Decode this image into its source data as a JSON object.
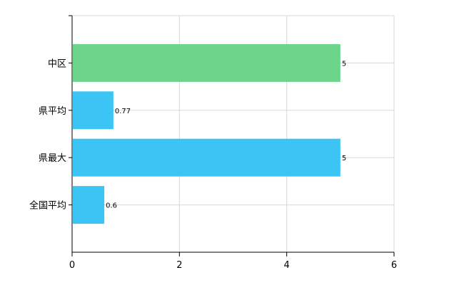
{
  "chart_data": {
    "type": "bar",
    "orientation": "horizontal",
    "categories": [
      "中区",
      "県平均",
      "県最大",
      "全国平均"
    ],
    "values": [
      5,
      0.77,
      5,
      0.6
    ],
    "value_labels": [
      "5",
      "0.77",
      "5",
      "0.6"
    ],
    "bar_colors": [
      "#6cd48b",
      "#3cc5f4",
      "#3cc5f4",
      "#3cc5f4"
    ],
    "xlim": [
      0,
      6
    ],
    "x_ticks": [
      0,
      2,
      4,
      6
    ],
    "x_tick_labels": [
      "0",
      "2",
      "4",
      "6"
    ],
    "grid": true,
    "legend": "none",
    "title": "",
    "xlabel": "",
    "ylabel": ""
  }
}
